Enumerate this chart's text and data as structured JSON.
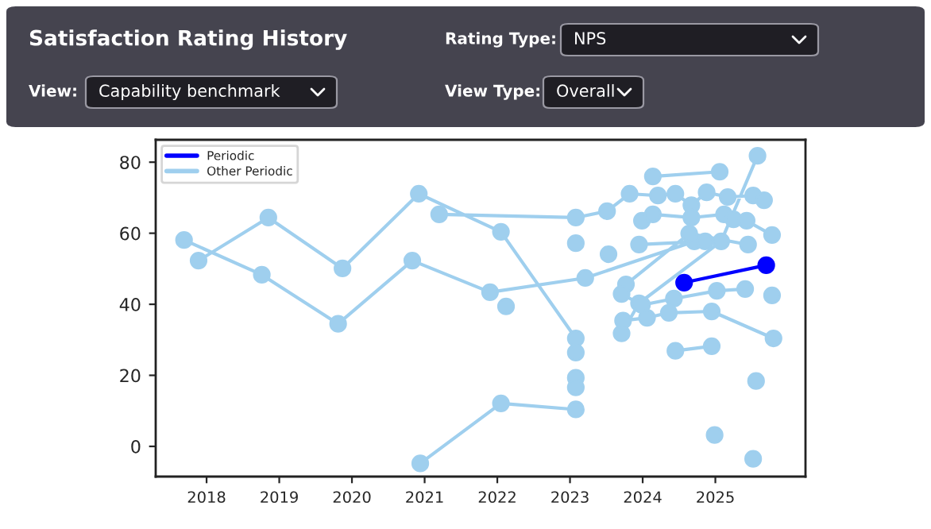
{
  "chart_data": {
    "type": "line",
    "title": "Satisfaction Rating History",
    "annotations": [
      "Rating Type:",
      "NPS",
      "View:",
      "Capability benchmark",
      "View Type:",
      "Overall"
    ],
    "xlim": [
      2017.3,
      2026.24
    ],
    "xticks": [
      2018,
      2019,
      2020,
      2021,
      2022,
      2023,
      2024,
      2025
    ],
    "ylim": [
      -8.5,
      86.3
    ],
    "yticks": [
      0,
      20,
      40,
      60,
      80
    ],
    "legend": "top left",
    "marker": "circle",
    "line_style": "solid",
    "grid": false,
    "series": [
      {
        "name": "Other Periodic",
        "color": "#9fcfee",
        "x": [
          2017.69,
          2018.76,
          2019.81,
          2020.83,
          2021.9,
          2023.21,
          2024.71,
          null,
          2017.89,
          2018.85,
          2019.87,
          2020.92,
          2022.05,
          2023.08,
          null,
          2021.2,
          2023.08,
          2023.51,
          2023.82,
          2024.21,
          2024.45,
          2024.67,
          2024.88,
          2025.17,
          2025.52,
          2025.67,
          null,
          2020.94,
          2022.05,
          2023.08,
          null,
          2024.14,
          2025.06,
          null,
          2025.58,
          2025.08,
          2023.95,
          2023.71,
          null,
          2023.99,
          2024.14,
          2024.67,
          2025.12,
          2025.25,
          2025.43,
          2025.78,
          null,
          2023.77,
          2024.64,
          2025.45,
          null,
          2023.71,
          2023.99,
          2024.43,
          2025.02,
          2025.41,
          null,
          2023.73,
          2024.06,
          2024.36,
          2024.95,
          2025.8,
          null,
          2024.45,
          2024.95,
          null,
          2023.95,
          2024.86,
          null,
          2023.08,
          null,
          2022.12,
          null,
          2023.08,
          null,
          2023.08,
          null,
          2023.08,
          null,
          2025.78,
          null,
          2025.56,
          null,
          2024.99,
          null,
          2025.52,
          null,
          2023.53
        ],
        "values": [
          58.1,
          48.3,
          34.5,
          52.3,
          43.4,
          47.4,
          57.7,
          null,
          52.3,
          64.4,
          50.1,
          71.1,
          60.4,
          30.4,
          null,
          65.3,
          64.4,
          66.2,
          71.1,
          70.6,
          71.1,
          67.9,
          71.5,
          70.2,
          70.6,
          69.3,
          null,
          -4.8,
          12.1,
          10.4,
          null,
          76.0,
          77.3,
          null,
          81.8,
          57.7,
          40.3,
          31.8,
          null,
          63.5,
          65.3,
          64.4,
          65.3,
          63.9,
          63.5,
          59.5,
          null,
          45.6,
          59.9,
          56.8,
          null,
          42.9,
          39.8,
          41.6,
          43.8,
          44.3,
          null,
          35.4,
          36.2,
          37.6,
          38.0,
          30.4,
          null,
          26.9,
          28.2,
          null,
          56.8,
          57.7,
          null,
          57.2,
          null,
          39.4,
          null,
          26.4,
          null,
          19.3,
          null,
          16.6,
          null,
          42.5,
          null,
          18.4,
          null,
          3.2,
          null,
          -3.5,
          null,
          54.1
        ]
      },
      {
        "name": "Periodic",
        "color": "#0000ff",
        "x": [
          2024.57,
          2025.7
        ],
        "values": [
          46.1,
          51.0
        ]
      }
    ]
  }
}
